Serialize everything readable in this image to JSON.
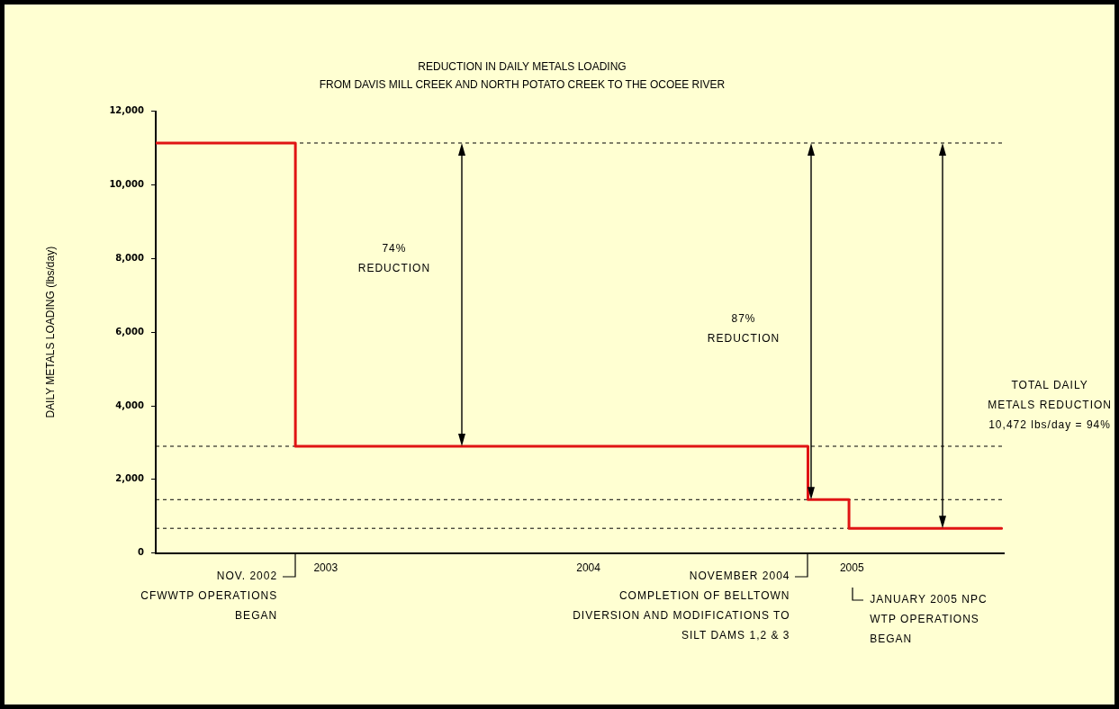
{
  "chart_data": {
    "type": "step",
    "title": "REDUCTION IN DAILY METALS LOADING",
    "subtitle": "FROM DAVIS MILL CREEK AND NORTH POTATO CREEK TO THE OCOEE RIVER",
    "ylabel": "DAILY METALS LOADING (lbs/day)",
    "x": [
      "2002-05-10",
      "2002-11-20",
      "2004-11-01",
      "2004-12-28",
      "2005-07-28"
    ],
    "series": [
      {
        "color": "#e01414",
        "values": [
          11140,
          2900,
          1450,
          670,
          670
        ]
      }
    ],
    "xlim": [
      "2002-05-10",
      "2005-07-31"
    ],
    "xticks": [
      {
        "value": "2003-01-01",
        "label": "2003"
      },
      {
        "value": "2004-01-01",
        "label": "2004"
      },
      {
        "value": "2005-01-01",
        "label": "2005"
      }
    ],
    "ylim": [
      0,
      12000
    ],
    "yticks": [
      {
        "value": 0,
        "label": "0"
      },
      {
        "value": 2000,
        "label": "2,000"
      },
      {
        "value": 4000,
        "label": "4,000"
      },
      {
        "value": 6000,
        "label": "6,000"
      },
      {
        "value": 8000,
        "label": "8,000"
      },
      {
        "value": 10000,
        "label": "10,000"
      },
      {
        "value": 12000,
        "label": "12,000"
      }
    ],
    "marker": "none",
    "line_style": "solid",
    "ref_lines": [
      {
        "axis": "y",
        "value": 11140,
        "color": "#000000",
        "line_style": "dashed"
      },
      {
        "axis": "y",
        "value": 2900,
        "color": "#000000",
        "line_style": "dashed"
      },
      {
        "axis": "y",
        "value": 1450,
        "color": "#000000",
        "line_style": "dashed"
      },
      {
        "axis": "y",
        "value": 670,
        "color": "#000000",
        "line_style": "dashed"
      }
    ],
    "annotations": [
      "74%\nREDUCTION",
      "87%\nREDUCTION",
      "TOTAL DAILY\nMETALS REDUCTION\n10,472 lbs/day = 94%",
      "NOV. 2002\nCFWWTP OPERATIONS\nBEGAN",
      "NOVEMBER 2004\nCOMPLETION OF BELLTOWN\nDIVERSION AND MODIFICATIONS TO\nSILT DAMS 1,2 & 3",
      "JANUARY 2005 NPC\nWTP OPERATIONS\nBEGAN"
    ]
  }
}
